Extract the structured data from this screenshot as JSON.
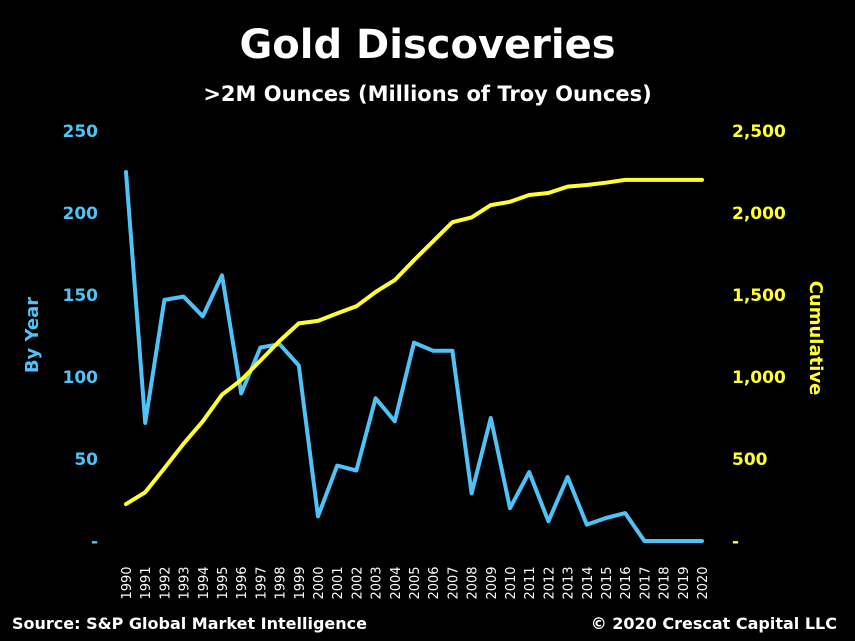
{
  "chart_data": {
    "type": "line",
    "title": "Gold Discoveries",
    "subtitle": ">2M Ounces (Millions of Troy Ounces)",
    "ylabel_left": "By Year",
    "ylabel_right": "Cumulative",
    "x": [
      "1990",
      "1991",
      "1992",
      "1993",
      "1994",
      "1995",
      "1996",
      "1997",
      "1998",
      "1999",
      "2000",
      "2001",
      "2002",
      "2003",
      "2004",
      "2005",
      "2006",
      "2007",
      "2008",
      "2009",
      "2010",
      "2011",
      "2012",
      "2013",
      "2014",
      "2015",
      "2016",
      "2017",
      "2018",
      "2019",
      "2020"
    ],
    "ylim_left": [
      0,
      250
    ],
    "ylim_right": [
      0,
      2500
    ],
    "yticks_left": [
      "-",
      "50",
      "100",
      "150",
      "200",
      "250"
    ],
    "yticks_right": [
      "-",
      "500",
      "1,000",
      "1,500",
      "2,000",
      "2,500"
    ],
    "series": [
      {
        "axis": "left",
        "color": "#4fc3f7",
        "values": [
          225,
          72,
          147,
          149,
          137,
          162,
          90,
          118,
          120,
          107,
          15,
          46,
          43,
          87,
          73,
          121,
          116,
          116,
          29,
          75,
          20,
          42,
          12,
          39,
          10,
          14,
          17,
          0,
          0,
          0,
          0
        ]
      },
      {
        "axis": "right",
        "color": "#ffff33",
        "values": [
          225,
          297,
          444,
          593,
          730,
          892,
          982,
          1100,
          1220,
          1327,
          1342,
          1388,
          1431,
          1518,
          1591,
          1712,
          1828,
          1944,
          1973,
          2048,
          2068,
          2110,
          2122,
          2161,
          2171,
          2185,
          2202,
          2202,
          2202,
          2202,
          2202
        ]
      }
    ],
    "grid": false
  },
  "footer": {
    "source": "Source: S&P Global Market Intelligence",
    "copyright": "© 2020 Crescat Capital LLC"
  },
  "colors": {
    "background": "#000000",
    "by_year": "#4fc3f7",
    "cumulative": "#ffff33"
  }
}
